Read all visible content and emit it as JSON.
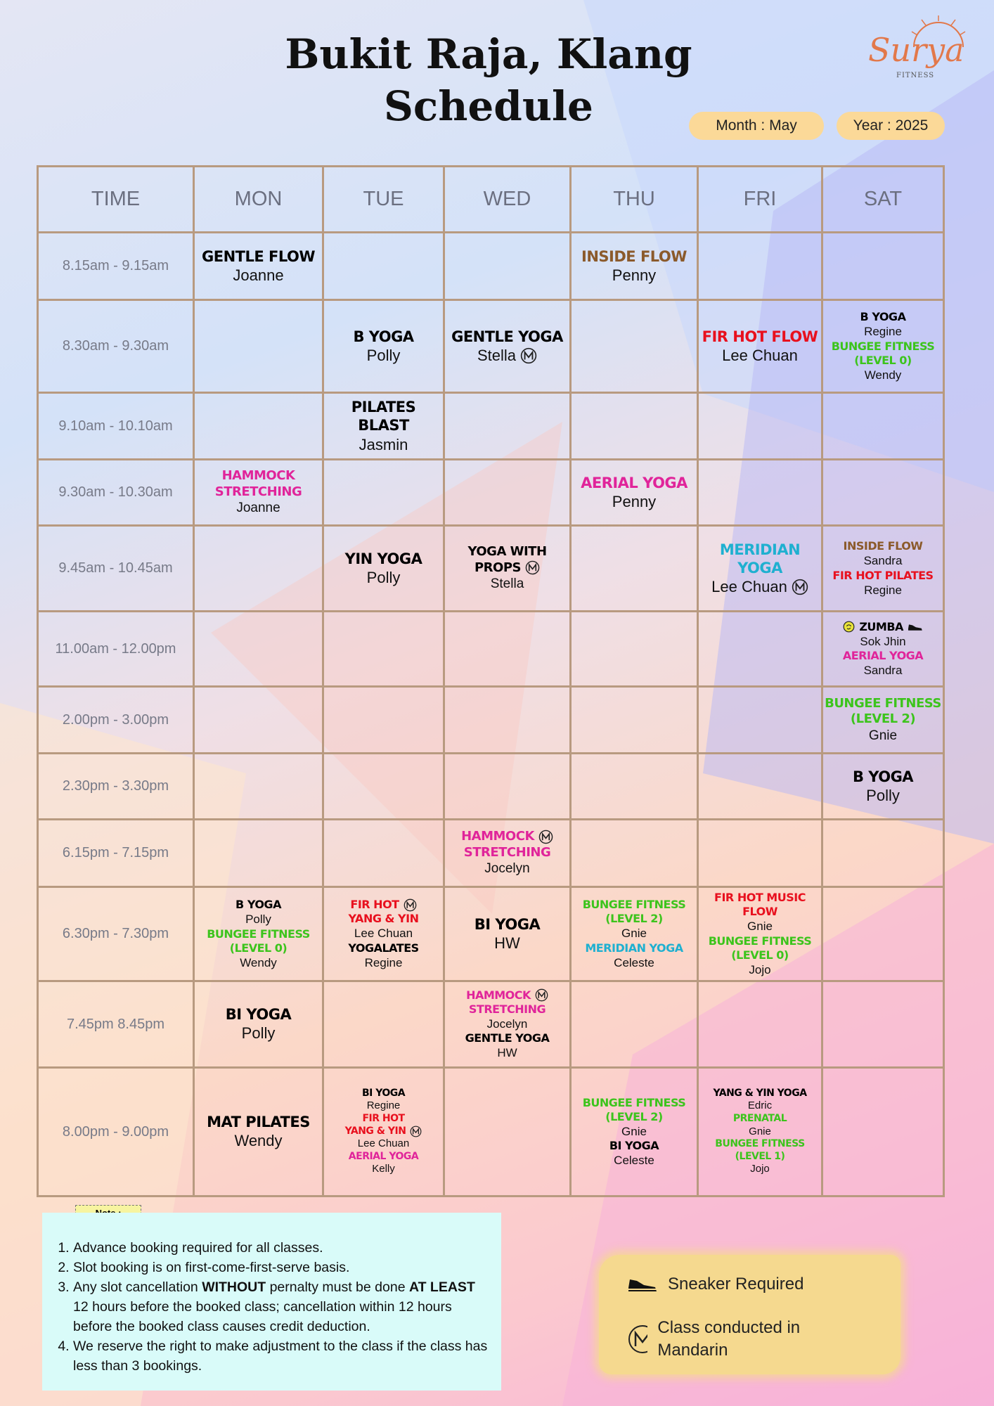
{
  "header": {
    "title": [
      "Bukit Raja, Klang",
      "Schedule"
    ],
    "logo": {
      "name": "Surya",
      "tagline": "FITNESS"
    },
    "month": "Month : May",
    "year": "Year : 2025"
  },
  "table": {
    "columns": [
      "TIME",
      "MON",
      "TUE",
      "WED",
      "THU",
      "FRI",
      "SAT"
    ],
    "rows": [
      {
        "time": "8.15am - 9.15am",
        "days": [
          [
            {
              "text": "GENTLE FLOW",
              "color": "#000000"
            },
            {
              "text": "Joanne"
            }
          ],
          [],
          [],
          [
            {
              "text": "INSIDE FLOW",
              "color": "#8b5a2b"
            },
            {
              "text": "Penny"
            }
          ],
          [],
          []
        ]
      },
      {
        "time": "8.30am - 9.30am",
        "days": [
          [],
          [
            {
              "text": "B YOGA",
              "color": "#000000"
            },
            {
              "text": "Polly"
            }
          ],
          [
            {
              "text": "GENTLE YOGA",
              "color": "#000000"
            },
            {
              "text": "Stella",
              "mandarin": true
            }
          ],
          [],
          [
            {
              "text": "FIR HOT FLOW",
              "color": "#e8101e"
            },
            {
              "text": "Lee Chuan"
            }
          ],
          [
            {
              "text": "B YOGA",
              "color": "#000000"
            },
            {
              "text": "Regine"
            },
            {
              "text": "BUNGEE FITNESS",
              "color": "#3cc41c"
            },
            {
              "text": "(LEVEL 0)",
              "color": "#3cc41c"
            },
            {
              "text": "Wendy"
            }
          ]
        ]
      },
      {
        "time": "9.10am - 10.10am",
        "days": [
          [],
          [
            {
              "text": "PILATES BLAST",
              "color": "#000000"
            },
            {
              "text": "Jasmin"
            }
          ],
          [],
          [],
          [],
          []
        ]
      },
      {
        "time": "9.30am - 10.30am",
        "days": [
          [
            {
              "text": "HAMMOCK",
              "color": "#e0249a"
            },
            {
              "text": "STRETCHING",
              "color": "#e0249a"
            },
            {
              "text": "Joanne"
            }
          ],
          [],
          [],
          [
            {
              "text": "AERIAL YOGA",
              "color": "#e0249a"
            },
            {
              "text": "Penny"
            }
          ],
          [],
          []
        ]
      },
      {
        "time": "9.45am - 10.45am",
        "days": [
          [],
          [
            {
              "text": "YIN YOGA",
              "color": "#000000"
            },
            {
              "text": "Polly"
            }
          ],
          [
            {
              "text": "YOGA WITH",
              "color": "#000000"
            },
            {
              "text": "PROPS",
              "color": "#000000",
              "mandarin": true
            },
            {
              "text": "Stella"
            }
          ],
          [],
          [
            {
              "text": "MERIDIAN YOGA",
              "color": "#1fb0d0"
            },
            {
              "text": "Lee Chuan",
              "mandarin": true
            }
          ],
          [
            {
              "text": "INSIDE FLOW",
              "color": "#8b5a2b"
            },
            {
              "text": "Sandra"
            },
            {
              "text": "FIR HOT PILATES",
              "color": "#e8101e"
            },
            {
              "text": "Regine"
            }
          ]
        ]
      },
      {
        "time": "11.00am - 12.00pm",
        "days": [
          [],
          [],
          [],
          [],
          [],
          [
            {
              "text": "ZUMBA",
              "color": "#000000",
              "zumba": true,
              "sneaker": true
            },
            {
              "text": "Sok Jhin"
            },
            {
              "text": "AERIAL YOGA",
              "color": "#e0249a"
            },
            {
              "text": "Sandra"
            }
          ]
        ]
      },
      {
        "time": "2.00pm - 3.00pm",
        "days": [
          [],
          [],
          [],
          [],
          [],
          [
            {
              "text": "BUNGEE FITNESS",
              "color": "#3cc41c"
            },
            {
              "text": "(LEVEL 2)",
              "color": "#3cc41c"
            },
            {
              "text": "Gnie"
            }
          ]
        ]
      },
      {
        "time": "2.30pm - 3.30pm",
        "days": [
          [],
          [],
          [],
          [],
          [],
          [
            {
              "text": "B YOGA",
              "color": "#000000"
            },
            {
              "text": "Polly"
            }
          ]
        ]
      },
      {
        "time": "6.15pm - 7.15pm",
        "days": [
          [],
          [],
          [
            {
              "text": "HAMMOCK",
              "color": "#e0249a",
              "mandarin": true
            },
            {
              "text": "STRETCHING",
              "color": "#e0249a"
            },
            {
              "text": "Jocelyn"
            }
          ],
          [],
          [],
          []
        ]
      },
      {
        "time": "6.30pm - 7.30pm",
        "days": [
          [
            {
              "text": "B YOGA",
              "color": "#000000"
            },
            {
              "text": "Polly"
            },
            {
              "text": "BUNGEE FITNESS",
              "color": "#3cc41c"
            },
            {
              "text": "(LEVEL 0)",
              "color": "#3cc41c"
            },
            {
              "text": "Wendy"
            }
          ],
          [
            {
              "text": "FIR HOT",
              "color": "#e8101e",
              "mandarin": true
            },
            {
              "text": "YANG & YIN",
              "color": "#e8101e"
            },
            {
              "text": "Lee Chuan"
            },
            {
              "text": "YOGALATES",
              "color": "#000000"
            },
            {
              "text": "Regine"
            }
          ],
          [
            {
              "text": "BI YOGA",
              "color": "#000000"
            },
            {
              "text": "HW"
            }
          ],
          [
            {
              "text": "BUNGEE FITNESS",
              "color": "#3cc41c"
            },
            {
              "text": "(LEVEL 2)",
              "color": "#3cc41c"
            },
            {
              "text": "Gnie"
            },
            {
              "text": "MERIDIAN YOGA",
              "color": "#1fb0d0"
            },
            {
              "text": "Celeste"
            }
          ],
          [
            {
              "text": "FIR HOT MUSIC FLOW",
              "color": "#e8101e"
            },
            {
              "text": "Gnie"
            },
            {
              "text": "BUNGEE FITNESS",
              "color": "#3cc41c"
            },
            {
              "text": "(LEVEL 0)",
              "color": "#3cc41c"
            },
            {
              "text": "Jojo"
            }
          ],
          []
        ]
      },
      {
        "time": "7.45pm 8.45pm",
        "days": [
          [
            {
              "text": "BI YOGA",
              "color": "#000000"
            },
            {
              "text": "Polly"
            }
          ],
          [],
          [
            {
              "text": "HAMMOCK",
              "color": "#e0249a",
              "mandarin": true
            },
            {
              "text": "STRETCHING",
              "color": "#e0249a"
            },
            {
              "text": "Jocelyn"
            },
            {
              "text": "GENTLE YOGA",
              "color": "#000000"
            },
            {
              "text": "HW"
            }
          ],
          [],
          [],
          []
        ]
      },
      {
        "time": "8.00pm - 9.00pm",
        "days": [
          [
            {
              "text": "MAT PILATES",
              "color": "#000000"
            },
            {
              "text": "Wendy"
            }
          ],
          [
            {
              "text": "BI YOGA",
              "color": "#000000"
            },
            {
              "text": "Regine"
            },
            {
              "text": "FIR HOT",
              "color": "#e8101e"
            },
            {
              "text": "YANG & YIN",
              "color": "#e8101e",
              "mandarin": true
            },
            {
              "text": "Lee Chuan"
            },
            {
              "text": "AERIAL YOGA",
              "color": "#e0249a"
            },
            {
              "text": "Kelly"
            }
          ],
          [],
          [
            {
              "text": "BUNGEE FITNESS",
              "color": "#3cc41c"
            },
            {
              "text": "(LEVEL 2)",
              "color": "#3cc41c"
            },
            {
              "text": "Gnie"
            },
            {
              "text": "BI YOGA",
              "color": "#000000"
            },
            {
              "text": "Celeste"
            }
          ],
          [
            {
              "text": "YANG & YIN YOGA",
              "color": "#000000"
            },
            {
              "text": "Edric"
            },
            {
              "text": "PRENATAL",
              "color": "#3cc41c"
            },
            {
              "text": "Gnie"
            },
            {
              "text": "BUNGEE FITNESS",
              "color": "#3cc41c"
            },
            {
              "text": "(LEVEL 1)",
              "color": "#3cc41c"
            },
            {
              "text": "Jojo"
            }
          ],
          []
        ]
      }
    ]
  },
  "notes": {
    "label": "Note :",
    "items": [
      [
        {
          "text": "Advance booking required for all classes."
        }
      ],
      [
        {
          "text": "Slot booking is on first-come-first-serve basis."
        }
      ],
      [
        {
          "text": "Any slot cancellation "
        },
        {
          "text": "WITHOUT",
          "bold": true
        },
        {
          "text": " pernalty must be done "
        },
        {
          "text": "AT LEAST",
          "bold": true
        },
        {
          "text": " 12 hours before the booked class; cancellation within 12 hours before the booked class causes credit deduction."
        }
      ],
      [
        {
          "text": " We reserve the right to make adjustment to the class if the class has less than 3 bookings."
        }
      ]
    ]
  },
  "legend": {
    "sneaker": "Sneaker Required",
    "mandarin": "Class conducted in Mandarin"
  }
}
